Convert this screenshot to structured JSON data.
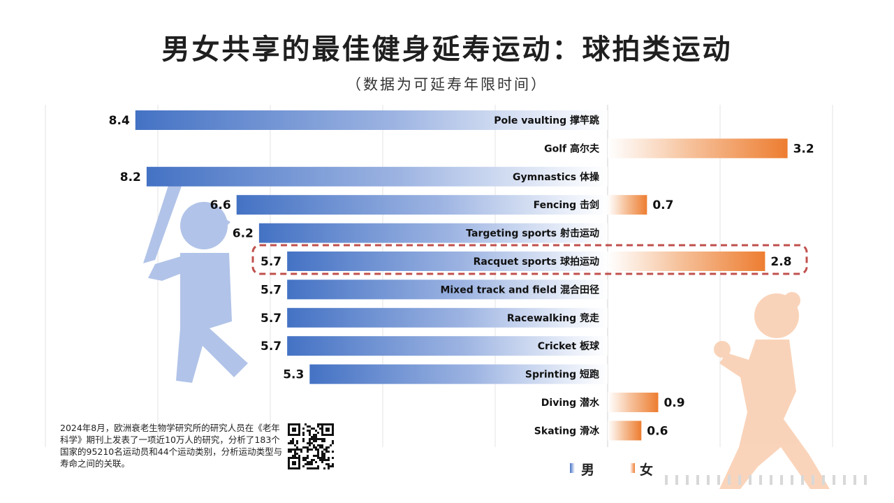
{
  "header": {
    "title": "男女共享的最佳健身延寿运动：球拍类运动",
    "subtitle": "（数据为可延寿年限时间）"
  },
  "chart_data": {
    "type": "bar",
    "orientation": "horizontal-diverging",
    "categories": [
      "Pole vaulting 撑竿跳",
      "Golf 高尔夫",
      "Gymnastics 体操",
      "Fencing 击剑",
      "Targeting sports 射击运动",
      "Racquet sports 球拍运动",
      "Mixed track and field 混合田径",
      "Racewalking 竞走",
      "Cricket 板球",
      "Sprinting 短跑",
      "Diving 潜水",
      "Skating 滑冰"
    ],
    "series": [
      {
        "name": "男",
        "color": "#4472c4",
        "values": [
          8.4,
          null,
          8.2,
          6.6,
          6.2,
          5.7,
          5.7,
          5.7,
          5.7,
          5.3,
          null,
          null
        ]
      },
      {
        "name": "女",
        "color": "#ed7d31",
        "values": [
          null,
          3.2,
          null,
          0.7,
          null,
          2.8,
          null,
          null,
          null,
          null,
          0.9,
          0.6
        ]
      }
    ],
    "highlight": "Racquet sports 球拍运动",
    "grid": true,
    "legend": "bottom-right"
  },
  "footnote": "2024年8月，欧洲衰老生物学研究所的研究人员在《老年科学》期刊上发表了一项近10万人的研究，分析了183个国家的95210名运动员和44个运动类别，分析运动类型与寿命之间的关联。",
  "decor": {
    "left_figure": "baseball-player-silhouette",
    "right_figure": "female-runner-silhouette",
    "qr": "qr-code-icon"
  }
}
